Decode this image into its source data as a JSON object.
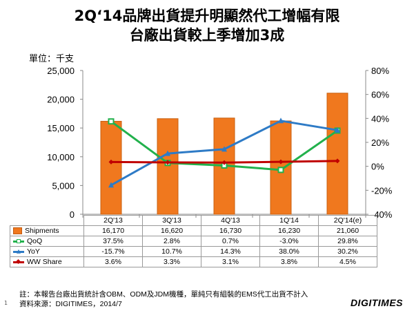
{
  "title_line1": "2Q‘14品牌出貨提升明顯然代工增幅有限",
  "title_line2": "台廠出貨較上季增加3成",
  "unit_label": "單位：千支",
  "chart_data": {
    "type": "bar+line",
    "categories": [
      "2Q'13",
      "3Q'13",
      "4Q'13",
      "1Q'14",
      "2Q'14(e)"
    ],
    "bar_series": {
      "name": "Shipments",
      "values": [
        16170,
        16620,
        16730,
        16230,
        21060
      ],
      "display": [
        "16,170",
        "16,620",
        "16,730",
        "16,230",
        "21,060"
      ],
      "color": "#F0781E"
    },
    "line_series": [
      {
        "name": "QoQ",
        "values": [
          37.5,
          2.8,
          0.7,
          -3.0,
          29.8
        ],
        "display": [
          "37.5%",
          "2.8%",
          "0.7%",
          "-3.0%",
          "29.8%"
        ],
        "color": "#22B14C",
        "marker": "square"
      },
      {
        "name": "YoY",
        "values": [
          -15.7,
          10.7,
          14.3,
          38.0,
          30.2
        ],
        "display": [
          "-15.7%",
          "10.7%",
          "14.3%",
          "38.0%",
          "30.2%"
        ],
        "color": "#2E7BC6",
        "marker": "triangle"
      },
      {
        "name": "WW Share",
        "values": [
          3.6,
          3.3,
          3.1,
          3.8,
          4.5
        ],
        "display": [
          "3.6%",
          "3.3%",
          "3.1%",
          "3.8%",
          "4.5%"
        ],
        "color": "#C00000",
        "marker": "diamond"
      }
    ],
    "y_left": {
      "min": 0,
      "max": 25000,
      "step": 5000,
      "ticks": [
        "0",
        "5,000",
        "10,000",
        "15,000",
        "20,000",
        "25,000"
      ]
    },
    "y_right": {
      "min": -40,
      "max": 80,
      "step": 20,
      "ticks": [
        "-40%",
        "-20%",
        "0%",
        "20%",
        "40%",
        "60%",
        "80%"
      ]
    }
  },
  "footnote1": "註：本報告台廠出貨統計含OBM、ODM及JDM機種，單純只有組裝的EMS代工出貨不計入",
  "footnote2": "資料來源：DIGITIMES，2014/7",
  "page_number": "1",
  "logo_text": "DIGITIMES"
}
